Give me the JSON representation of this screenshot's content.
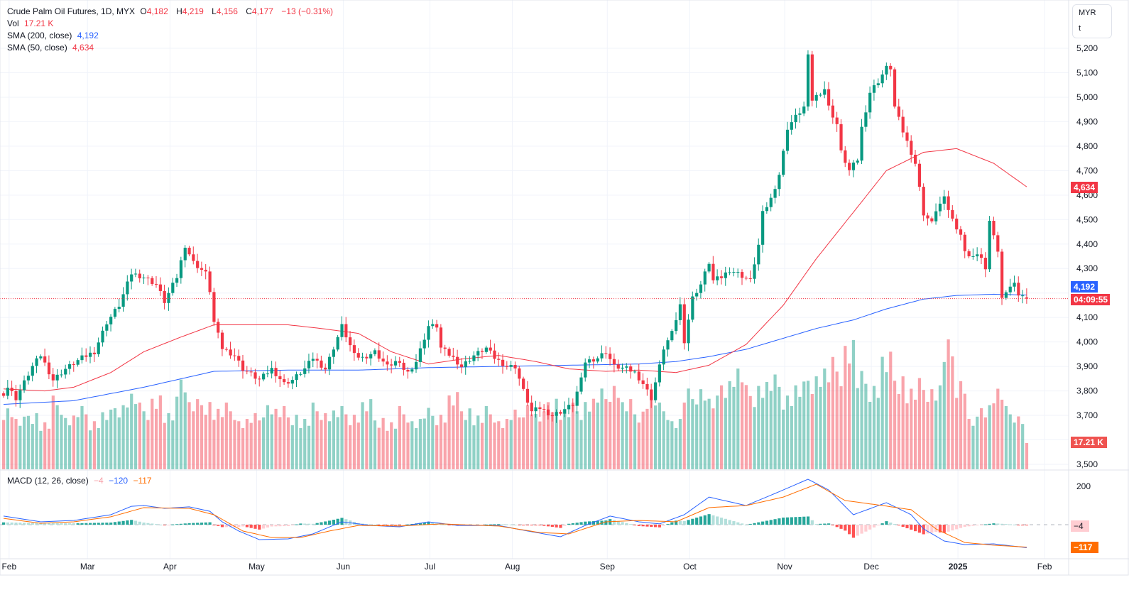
{
  "header": {
    "title": "Crude Palm Oil Futures, 1D, MYX",
    "o_label": "O",
    "o": "4,182",
    "h_label": "H",
    "h": "4,219",
    "l_label": "L",
    "l": "4,156",
    "c_label": "C",
    "c": "4,177",
    "change": "−13 (−0.31%)",
    "vol_label": "Vol",
    "vol": "17.21 K",
    "sma200_label": "SMA (200, close)",
    "sma200": "4,192",
    "sma50_label": "SMA (50, close)",
    "sma50": "4,634",
    "macd_label": "MACD (12, 26, close)",
    "macd_hist": "−4",
    "macd": "−120",
    "macd_signal": "−117"
  },
  "unit": {
    "currency": "MYR",
    "unit": "t"
  },
  "tags": {
    "sma50": "4,634",
    "sma200": "4,192",
    "countdown": "04:09:55",
    "volume": "17.21 K",
    "hist": "−4",
    "signal": "−117"
  },
  "colors": {
    "up": "#089981",
    "down": "#f23645",
    "sma200": "#2962ff",
    "sma50": "#f23645",
    "macd": "#2962ff",
    "signal": "#ff6d00"
  },
  "chart_data": {
    "type": "candlestick",
    "title": "Crude Palm Oil Futures, 1D, MYX",
    "x_unit": "trading day index",
    "price_ylim": [
      3500,
      5200
    ],
    "price_ticks": [
      "5,200",
      "5,100",
      "5,000",
      "4,900",
      "4,800",
      "4,700",
      "4,600",
      "4,500",
      "4,400",
      "4,300",
      "4,100",
      "4,000",
      "3,900",
      "3,800",
      "3,700",
      "3,500"
    ],
    "price_tick_values": [
      5200,
      5100,
      5000,
      4900,
      4800,
      4700,
      4600,
      4500,
      4400,
      4300,
      4100,
      4000,
      3900,
      3800,
      3700,
      3500
    ],
    "month_ticks": [
      {
        "label": "Feb",
        "day": 1
      },
      {
        "label": "Mar",
        "day": 20
      },
      {
        "label": "Apr",
        "day": 40
      },
      {
        "label": "May",
        "day": 61
      },
      {
        "label": "Jun",
        "day": 82
      },
      {
        "label": "Jul",
        "day": 103
      },
      {
        "label": "Aug",
        "day": 123
      },
      {
        "label": "Sep",
        "day": 146
      },
      {
        "label": "Oct",
        "day": 166
      },
      {
        "label": "Nov",
        "day": 189
      },
      {
        "label": "Dec",
        "day": 210
      },
      {
        "label": "2025",
        "day": 231
      },
      {
        "label": "Feb",
        "day": 252
      }
    ],
    "close_anchors": [
      [
        0,
        3790
      ],
      [
        1,
        3815
      ],
      [
        3,
        3770
      ],
      [
        7,
        3900
      ],
      [
        9,
        3945
      ],
      [
        12,
        3845
      ],
      [
        15,
        3890
      ],
      [
        19,
        3935
      ],
      [
        22,
        3960
      ],
      [
        25,
        4080
      ],
      [
        28,
        4150
      ],
      [
        31,
        4280
      ],
      [
        34,
        4265
      ],
      [
        37,
        4235
      ],
      [
        39,
        4165
      ],
      [
        42,
        4265
      ],
      [
        44,
        4395
      ],
      [
        46,
        4325
      ],
      [
        49,
        4280
      ],
      [
        50,
        4210
      ],
      [
        51,
        4080
      ],
      [
        53,
        3975
      ],
      [
        56,
        3945
      ],
      [
        58,
        3890
      ],
      [
        62,
        3845
      ],
      [
        65,
        3890
      ],
      [
        68,
        3830
      ],
      [
        70,
        3845
      ],
      [
        73,
        3890
      ],
      [
        75,
        3935
      ],
      [
        78,
        3890
      ],
      [
        81,
        4020
      ],
      [
        82,
        4065
      ],
      [
        85,
        3945
      ],
      [
        87,
        3935
      ],
      [
        90,
        3960
      ],
      [
        93,
        3900
      ],
      [
        95,
        3920
      ],
      [
        98,
        3875
      ],
      [
        100,
        3920
      ],
      [
        103,
        4065
      ],
      [
        105,
        4065
      ],
      [
        106,
        3975
      ],
      [
        109,
        3935
      ],
      [
        111,
        3900
      ],
      [
        114,
        3945
      ],
      [
        117,
        3975
      ],
      [
        119,
        3935
      ],
      [
        122,
        3900
      ],
      [
        124,
        3900
      ],
      [
        126,
        3800
      ],
      [
        128,
        3715
      ],
      [
        130,
        3730
      ],
      [
        133,
        3700
      ],
      [
        135,
        3715
      ],
      [
        138,
        3745
      ],
      [
        140,
        3845
      ],
      [
        141,
        3920
      ],
      [
        144,
        3935
      ],
      [
        146,
        3960
      ],
      [
        148,
        3900
      ],
      [
        151,
        3890
      ],
      [
        153,
        3875
      ],
      [
        155,
        3830
      ],
      [
        157,
        3770
      ],
      [
        159,
        3900
      ],
      [
        160,
        3975
      ],
      [
        162,
        4035
      ],
      [
        164,
        4150
      ],
      [
        165,
        4005
      ],
      [
        167,
        4180
      ],
      [
        169,
        4235
      ],
      [
        171,
        4325
      ],
      [
        172,
        4250
      ],
      [
        174,
        4265
      ],
      [
        176,
        4295
      ],
      [
        178,
        4280
      ],
      [
        181,
        4250
      ],
      [
        183,
        4395
      ],
      [
        184,
        4525
      ],
      [
        186,
        4585
      ],
      [
        188,
        4685
      ],
      [
        189,
        4775
      ],
      [
        190,
        4875
      ],
      [
        192,
        4920
      ],
      [
        194,
        4960
      ],
      [
        195,
        5165
      ],
      [
        196,
        4990
      ],
      [
        199,
        5035
      ],
      [
        200,
        4960
      ],
      [
        202,
        4890
      ],
      [
        203,
        4775
      ],
      [
        205,
        4700
      ],
      [
        207,
        4745
      ],
      [
        208,
        4875
      ],
      [
        210,
        5020
      ],
      [
        212,
        5065
      ],
      [
        214,
        5120
      ],
      [
        215,
        5120
      ],
      [
        216,
        4960
      ],
      [
        218,
        4860
      ],
      [
        220,
        4775
      ],
      [
        221,
        4730
      ],
      [
        223,
        4525
      ],
      [
        225,
        4485
      ],
      [
        226,
        4540
      ],
      [
        228,
        4585
      ],
      [
        230,
        4500
      ],
      [
        232,
        4440
      ],
      [
        233,
        4365
      ],
      [
        235,
        4350
      ],
      [
        237,
        4350
      ],
      [
        238,
        4295
      ],
      [
        239,
        4485
      ],
      [
        240,
        4440
      ],
      [
        241,
        4365
      ],
      [
        242,
        4190
      ],
      [
        244,
        4220
      ],
      [
        245,
        4250
      ],
      [
        246,
        4190
      ],
      [
        247,
        4182
      ]
    ],
    "last_candle": {
      "open": 4182,
      "high": 4219,
      "low": 4156,
      "close": 4177
    },
    "volume_k_every_3_days": [
      38,
      30,
      35,
      28,
      42,
      32,
      36,
      30,
      34,
      40,
      45,
      38,
      44,
      32,
      56,
      40,
      42,
      36,
      38,
      30,
      32,
      40,
      36,
      34,
      30,
      38,
      35,
      36,
      34,
      40,
      32,
      28,
      36,
      30,
      35,
      34,
      44,
      38,
      32,
      36,
      30,
      34,
      40,
      33,
      44,
      36,
      38,
      42,
      46,
      52,
      40,
      36,
      44,
      38,
      30,
      46,
      50,
      42,
      55,
      60,
      48,
      52,
      54,
      46,
      50,
      58,
      60,
      64,
      77,
      56,
      52,
      67,
      58,
      48,
      52,
      50,
      74,
      55,
      30,
      40,
      48,
      36,
      33
    ],
    "last_volume_k": 17.21,
    "sma200_anchors": [
      [
        0,
        3745
      ],
      [
        17,
        3760
      ],
      [
        34,
        3815
      ],
      [
        51,
        3880
      ],
      [
        69,
        3885
      ],
      [
        86,
        3885
      ],
      [
        103,
        3895
      ],
      [
        120,
        3900
      ],
      [
        137,
        3905
      ],
      [
        154,
        3910
      ],
      [
        163,
        3920
      ],
      [
        171,
        3940
      ],
      [
        180,
        3970
      ],
      [
        189,
        4015
      ],
      [
        197,
        4055
      ],
      [
        206,
        4090
      ],
      [
        214,
        4135
      ],
      [
        223,
        4175
      ],
      [
        231,
        4190
      ],
      [
        240,
        4195
      ],
      [
        248,
        4192
      ]
    ],
    "sma50_anchors": [
      [
        0,
        3808
      ],
      [
        10,
        3800
      ],
      [
        17,
        3815
      ],
      [
        26,
        3875
      ],
      [
        34,
        3960
      ],
      [
        43,
        4020
      ],
      [
        51,
        4070
      ],
      [
        60,
        4070
      ],
      [
        69,
        4070
      ],
      [
        77,
        4055
      ],
      [
        86,
        4035
      ],
      [
        94,
        3960
      ],
      [
        103,
        3910
      ],
      [
        111,
        3930
      ],
      [
        120,
        3945
      ],
      [
        129,
        3920
      ],
      [
        137,
        3890
      ],
      [
        146,
        3880
      ],
      [
        154,
        3885
      ],
      [
        163,
        3875
      ],
      [
        171,
        3905
      ],
      [
        180,
        3990
      ],
      [
        189,
        4150
      ],
      [
        197,
        4340
      ],
      [
        206,
        4530
      ],
      [
        214,
        4700
      ],
      [
        223,
        4775
      ],
      [
        231,
        4790
      ],
      [
        240,
        4730
      ],
      [
        248,
        4634
      ]
    ],
    "macd_ylim": [
      -140,
      240
    ],
    "macd_ticks": [
      "200"
    ],
    "macd_tick_values": [
      200
    ],
    "macd_anchors": [
      [
        0,
        45
      ],
      [
        9,
        15
      ],
      [
        17,
        22
      ],
      [
        26,
        52
      ],
      [
        31,
        96
      ],
      [
        34,
        100
      ],
      [
        39,
        85
      ],
      [
        45,
        93
      ],
      [
        50,
        70
      ],
      [
        53,
        15
      ],
      [
        57,
        -33
      ],
      [
        62,
        -78
      ],
      [
        69,
        -74
      ],
      [
        75,
        -48
      ],
      [
        82,
        15
      ],
      [
        89,
        -4
      ],
      [
        96,
        -11
      ],
      [
        103,
        15
      ],
      [
        110,
        -4
      ],
      [
        120,
        -4
      ],
      [
        127,
        -33
      ],
      [
        135,
        -63
      ],
      [
        141,
        -4
      ],
      [
        147,
        45
      ],
      [
        154,
        15
      ],
      [
        159,
        4
      ],
      [
        165,
        52
      ],
      [
        171,
        144
      ],
      [
        180,
        100
      ],
      [
        189,
        181
      ],
      [
        195,
        237
      ],
      [
        200,
        181
      ],
      [
        206,
        52
      ],
      [
        214,
        115
      ],
      [
        220,
        52
      ],
      [
        223,
        -22
      ],
      [
        228,
        -85
      ],
      [
        233,
        -104
      ],
      [
        240,
        -100
      ],
      [
        248,
        -120
      ]
    ],
    "signal_anchors": [
      [
        0,
        33
      ],
      [
        9,
        7
      ],
      [
        17,
        15
      ],
      [
        26,
        41
      ],
      [
        34,
        89
      ],
      [
        45,
        85
      ],
      [
        51,
        52
      ],
      [
        58,
        -33
      ],
      [
        65,
        -67
      ],
      [
        72,
        -67
      ],
      [
        79,
        -33
      ],
      [
        86,
        -4
      ],
      [
        96,
        -7
      ],
      [
        106,
        4
      ],
      [
        120,
        -7
      ],
      [
        130,
        -41
      ],
      [
        137,
        -48
      ],
      [
        146,
        15
      ],
      [
        154,
        22
      ],
      [
        163,
        15
      ],
      [
        171,
        89
      ],
      [
        180,
        100
      ],
      [
        189,
        144
      ],
      [
        197,
        211
      ],
      [
        204,
        126
      ],
      [
        213,
        100
      ],
      [
        220,
        78
      ],
      [
        226,
        -22
      ],
      [
        233,
        -93
      ],
      [
        240,
        -107
      ],
      [
        248,
        -117
      ]
    ]
  }
}
